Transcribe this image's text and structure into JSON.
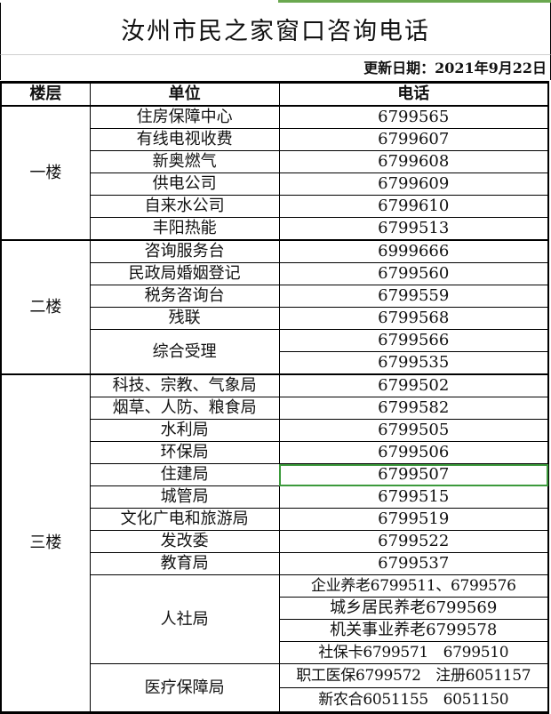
{
  "title": "汝州市民之家窗口咨询电话",
  "updated": "更新日期：2021年9月22日",
  "headers": {
    "floor": "楼层",
    "unit": "单位",
    "phone": "电话"
  },
  "accent": "#6aa84f",
  "floors": [
    {
      "floor": "一楼",
      "units": [
        {
          "name": "住房保障中心",
          "phones": [
            "6799565"
          ]
        },
        {
          "name": "有线电视收费",
          "phones": [
            "6799607"
          ]
        },
        {
          "name": "新奥燃气",
          "phones": [
            "6799608"
          ]
        },
        {
          "name": "供电公司",
          "phones": [
            "6799609"
          ]
        },
        {
          "name": "自来水公司",
          "phones": [
            "6799610"
          ]
        },
        {
          "name": "丰阳热能",
          "phones": [
            "6799513"
          ]
        }
      ]
    },
    {
      "floor": "二楼",
      "units": [
        {
          "name": "咨询服务台",
          "phones": [
            "6999666"
          ]
        },
        {
          "name": "民政局婚姻登记",
          "phones": [
            "6799560"
          ]
        },
        {
          "name": "税务咨询台",
          "phones": [
            "6799559"
          ]
        },
        {
          "name": "残联",
          "phones": [
            "6799568"
          ]
        },
        {
          "name": "综合受理",
          "phones": [
            "6799566",
            "6799535"
          ]
        }
      ]
    },
    {
      "floor": "三楼",
      "units": [
        {
          "name": "科技、宗教、气象局",
          "phones": [
            "6799502"
          ]
        },
        {
          "name": "烟草、人防、粮食局",
          "phones": [
            "6799582"
          ]
        },
        {
          "name": "水利局",
          "phones": [
            "6799505"
          ]
        },
        {
          "name": "环保局",
          "phones": [
            "6799506"
          ]
        },
        {
          "name": "住建局",
          "phones": [
            "6799507"
          ],
          "selected": true
        },
        {
          "name": "城管局",
          "phones": [
            "6799515"
          ]
        },
        {
          "name": "文化广电和旅游局",
          "phones": [
            "6799519"
          ]
        },
        {
          "name": "发改委",
          "phones": [
            "6799522"
          ]
        },
        {
          "name": "教育局",
          "phones": [
            "6799537"
          ]
        },
        {
          "name": "人社局",
          "phones": [
            "企业养老6799511、6799576",
            "城乡居民养老6799569",
            "机关事业养老6799578",
            "社保卡6799571　6799510"
          ]
        },
        {
          "name": "医疗保障局",
          "phones": [
            "职工医保6799572　注册6051157",
            "新农合6051155　6051150"
          ],
          "tall": true
        }
      ]
    }
  ]
}
